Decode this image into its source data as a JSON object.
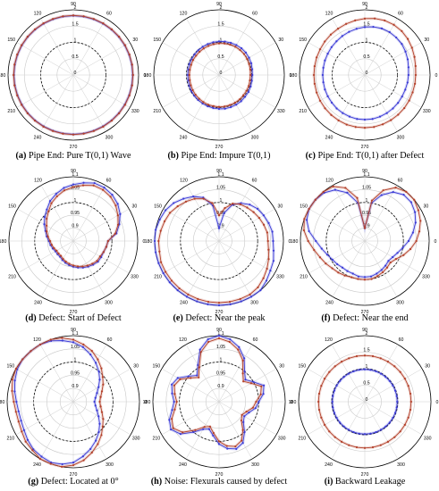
{
  "chart_data": [
    {
      "id": "a",
      "type": "polar",
      "caption_letter": "(a)",
      "caption_text": " Pipe End: Pure T(0,1) Wave",
      "r_ticks": [
        "0",
        "0.5",
        "1",
        "1.5",
        "2"
      ],
      "r_tick_values": [
        0,
        0.5,
        1,
        1.5,
        2
      ],
      "dashed_ring": "1",
      "theta_ticks_deg": [
        0,
        30,
        60,
        90,
        120,
        150,
        180,
        210,
        240,
        270,
        300,
        330
      ],
      "rmin": 0,
      "rmax": 2,
      "series": [
        {
          "color": "#3b3bd6",
          "radii": [
            1.82,
            1.82,
            1.82,
            1.82,
            1.82,
            1.82,
            1.82,
            1.82,
            1.82,
            1.82,
            1.82,
            1.82,
            1.82,
            1.82,
            1.82,
            1.82,
            1.82,
            1.82,
            1.82,
            1.82,
            1.82,
            1.82,
            1.82,
            1.82,
            1.82,
            1.82,
            1.82,
            1.82,
            1.82,
            1.82,
            1.82,
            1.82,
            1.82,
            1.82,
            1.82,
            1.82
          ]
        },
        {
          "color": "#b3402a",
          "radii": [
            1.83,
            1.83,
            1.83,
            1.83,
            1.83,
            1.83,
            1.83,
            1.83,
            1.83,
            1.83,
            1.83,
            1.83,
            1.83,
            1.83,
            1.83,
            1.83,
            1.83,
            1.83,
            1.83,
            1.83,
            1.83,
            1.83,
            1.83,
            1.83,
            1.83,
            1.83,
            1.83,
            1.83,
            1.83,
            1.83,
            1.83,
            1.83,
            1.83,
            1.83,
            1.83,
            1.83
          ]
        }
      ]
    },
    {
      "id": "b",
      "type": "polar",
      "caption_letter": "(b)",
      "caption_text": " Pipe End: Impure T(0,1)",
      "r_ticks": [
        "0",
        "0.5",
        "1",
        "1.5",
        "2"
      ],
      "r_tick_values": [
        0,
        0.5,
        1,
        1.5,
        2
      ],
      "dashed_ring": "1",
      "theta_ticks_deg": [
        0,
        30,
        60,
        90,
        120,
        150,
        180,
        210,
        240,
        270,
        300,
        330
      ],
      "rmin": 0,
      "rmax": 2,
      "series": [
        {
          "color": "#3b3bd6",
          "radii": [
            1.02,
            1.03,
            1.05,
            1.06,
            1.07,
            1.07,
            1.06,
            1.05,
            1.04,
            1.03,
            1.02,
            1.01,
            1.0,
            0.99,
            0.98,
            0.97,
            0.97,
            0.96,
            0.96,
            0.96,
            0.97,
            0.98,
            0.99,
            1.0,
            1.01,
            1.02,
            1.03,
            1.04,
            1.05,
            1.05,
            1.05,
            1.05,
            1.04,
            1.04,
            1.03,
            1.02
          ]
        },
        {
          "color": "#b3402a",
          "radii": [
            0.96,
            0.97,
            0.98,
            0.99,
            1.0,
            1.0,
            1.0,
            0.99,
            0.98,
            0.97,
            0.96,
            0.95,
            0.94,
            0.93,
            0.92,
            0.92,
            0.91,
            0.91,
            0.91,
            0.91,
            0.92,
            0.93,
            0.94,
            0.95,
            0.96,
            0.97,
            0.97,
            0.98,
            0.98,
            0.98,
            0.98,
            0.98,
            0.97,
            0.97,
            0.97,
            0.96
          ]
        }
      ]
    },
    {
      "id": "c",
      "type": "polar",
      "caption_letter": "(c)",
      "caption_text": " Pipe End: T(0,1) after Defect",
      "r_ticks": [
        "0",
        "0.5",
        "1",
        "1.5",
        "2"
      ],
      "r_tick_values": [
        0,
        0.5,
        1,
        1.5,
        2
      ],
      "dashed_ring": "1",
      "theta_ticks_deg": [
        0,
        30,
        60,
        90,
        120,
        150,
        180,
        210,
        240,
        270,
        300,
        330
      ],
      "rmin": 0,
      "rmax": 2,
      "series": [
        {
          "color": "#3b3bd6",
          "radii": [
            1.34,
            1.36,
            1.4,
            1.44,
            1.48,
            1.5,
            1.52,
            1.52,
            1.5,
            1.47,
            1.44,
            1.41,
            1.38,
            1.35,
            1.33,
            1.31,
            1.3,
            1.29,
            1.29,
            1.29,
            1.3,
            1.31,
            1.32,
            1.34,
            1.35,
            1.36,
            1.37,
            1.37,
            1.37,
            1.36,
            1.35,
            1.34,
            1.33,
            1.32,
            1.32,
            1.33
          ]
        },
        {
          "color": "#b3402a",
          "radii": [
            1.56,
            1.58,
            1.62,
            1.67,
            1.72,
            1.76,
            1.78,
            1.78,
            1.76,
            1.73,
            1.7,
            1.67,
            1.64,
            1.62,
            1.6,
            1.58,
            1.57,
            1.56,
            1.56,
            1.56,
            1.57,
            1.58,
            1.59,
            1.6,
            1.61,
            1.62,
            1.62,
            1.62,
            1.62,
            1.61,
            1.6,
            1.59,
            1.58,
            1.57,
            1.56,
            1.56
          ]
        }
      ]
    },
    {
      "id": "d",
      "type": "polar",
      "caption_letter": "(d)",
      "caption_text": " Defect: Start of Defect",
      "r_ticks": [
        "0.9",
        "0.95",
        "1",
        "1.05",
        "1.1"
      ],
      "r_tick_values": [
        0.9,
        0.95,
        1.0,
        1.05,
        1.1
      ],
      "dashed_ring": "1",
      "theta_ticks_deg": [
        0,
        30,
        60,
        90,
        120,
        150,
        180,
        210,
        240,
        270,
        300,
        330
      ],
      "rmin": 0.85,
      "rmax": 1.1,
      "series": [
        {
          "color": "#3b3bd6",
          "radii": [
            0.985,
            1.02,
            1.04,
            1.06,
            1.075,
            1.085,
            1.09,
            1.09,
            1.08,
            1.07,
            1.06,
            1.045,
            1.03,
            1.01,
            0.995,
            0.98,
            0.965,
            0.955,
            0.945,
            0.94,
            0.935,
            0.93,
            0.93,
            0.93,
            0.935,
            0.94,
            0.945,
            0.95,
            0.955,
            0.96,
            0.965,
            0.97,
            0.975,
            0.975,
            0.975,
            0.98
          ]
        },
        {
          "color": "#b3402a",
          "radii": [
            0.985,
            1.015,
            1.035,
            1.05,
            1.065,
            1.075,
            1.08,
            1.08,
            1.07,
            1.06,
            1.05,
            1.035,
            1.02,
            1.0,
            0.985,
            0.97,
            0.96,
            0.95,
            0.94,
            0.935,
            0.93,
            0.925,
            0.925,
            0.925,
            0.93,
            0.935,
            0.94,
            0.945,
            0.95,
            0.955,
            0.96,
            0.965,
            0.97,
            0.97,
            0.975,
            0.98
          ]
        }
      ]
    },
    {
      "id": "e",
      "type": "polar",
      "caption_letter": "(e)",
      "caption_text": " Defect: Near the peak",
      "r_ticks": [
        "0.9",
        "0.95",
        "1",
        "1.05",
        "1.1"
      ],
      "r_tick_values": [
        0.9,
        0.95,
        1.0,
        1.05,
        1.1
      ],
      "dashed_ring": "1",
      "theta_ticks_deg": [
        0,
        30,
        60,
        90,
        120,
        150,
        180,
        210,
        240,
        270,
        300,
        330
      ],
      "rmin": 0.85,
      "rmax": 1.1,
      "series": [
        {
          "color": "#3b3bd6",
          "radii": [
            1.06,
            1.06,
            1.055,
            1.05,
            1.045,
            1.035,
            1.02,
            1.0,
            0.96,
            0.9,
            0.99,
            1.03,
            1.05,
            1.065,
            1.08,
            1.09,
            1.095,
            1.1,
            1.1,
            1.1,
            1.1,
            1.1,
            1.1,
            1.1,
            1.1,
            1.1,
            1.1,
            1.1,
            1.1,
            1.1,
            1.1,
            1.1,
            1.09,
            1.08,
            1.075,
            1.065
          ]
        },
        {
          "color": "#b3402a",
          "radii": [
            1.04,
            1.04,
            1.035,
            1.03,
            1.025,
            1.02,
            1.015,
            1.005,
            0.98,
            0.95,
            1.0,
            1.025,
            1.04,
            1.05,
            1.06,
            1.07,
            1.075,
            1.08,
            1.085,
            1.085,
            1.09,
            1.09,
            1.09,
            1.09,
            1.09,
            1.09,
            1.09,
            1.09,
            1.09,
            1.09,
            1.09,
            1.085,
            1.075,
            1.065,
            1.055,
            1.045
          ]
        }
      ]
    },
    {
      "id": "f",
      "type": "polar",
      "caption_letter": "(f)",
      "caption_text": " Defect: Near the end",
      "r_ticks": [
        "0.9",
        "0.95",
        "1",
        "1.05",
        "1.1"
      ],
      "r_tick_values": [
        0.9,
        0.95,
        1.0,
        1.05,
        1.1
      ],
      "dashed_ring": "1",
      "theta_ticks_deg": [
        0,
        30,
        60,
        90,
        120,
        150,
        180,
        210,
        240,
        270,
        300,
        330
      ],
      "rmin": 0.85,
      "rmax": 1.1,
      "series": [
        {
          "color": "#3b3bd6",
          "radii": [
            1.02,
            1.04,
            1.06,
            1.075,
            1.085,
            1.085,
            1.07,
            1.04,
            1.0,
            0.9,
            1.0,
            1.05,
            1.08,
            1.095,
            1.1,
            1.1,
            1.09,
            1.07,
            1.04,
            1.02,
            1.005,
            0.995,
            0.99,
            0.985,
            0.985,
            0.985,
            0.99,
            0.99,
            0.99,
            0.985,
            0.98,
            0.975,
            0.97,
            0.975,
            0.985,
            1.0
          ]
        },
        {
          "color": "#b3402a",
          "radii": [
            1.05,
            1.065,
            1.08,
            1.09,
            1.1,
            1.1,
            1.09,
            1.06,
            1.01,
            0.9,
            1.02,
            1.07,
            1.095,
            1.1,
            1.1,
            1.1,
            1.1,
            1.09,
            1.07,
            1.05,
            1.035,
            1.025,
            1.015,
            1.01,
            1.005,
            1.0,
            1.0,
            1.0,
            1.0,
            0.995,
            0.99,
            0.985,
            0.98,
            0.99,
            1.01,
            1.03
          ]
        }
      ]
    },
    {
      "id": "g",
      "type": "polar",
      "caption_letter": "(g)",
      "caption_text": " Defect: Located at 0°",
      "r_ticks": [
        "0.9",
        "0.95",
        "1",
        "1.05",
        "1.1"
      ],
      "r_tick_values": [
        0.9,
        0.95,
        1.0,
        1.05,
        1.1
      ],
      "dashed_ring": "1",
      "theta_ticks_deg": [
        0,
        30,
        60,
        90,
        120,
        150,
        180,
        210,
        240,
        270,
        300,
        330
      ],
      "rmin": 0.85,
      "rmax": 1.1,
      "series": [
        {
          "color": "#3b3bd6",
          "radii": [
            0.93,
            0.935,
            0.945,
            0.96,
            0.98,
            1.0,
            1.02,
            1.04,
            1.06,
            1.075,
            1.085,
            1.095,
            1.1,
            1.1,
            1.1,
            1.095,
            1.085,
            1.075,
            1.065,
            1.06,
            1.06,
            1.065,
            1.075,
            1.085,
            1.09,
            1.095,
            1.09,
            1.08,
            1.06,
            1.04,
            1.02,
            1.0,
            0.98,
            0.96,
            0.945,
            0.935
          ]
        },
        {
          "color": "#b3402a",
          "radii": [
            0.95,
            0.955,
            0.965,
            0.98,
            0.995,
            1.015,
            1.035,
            1.055,
            1.07,
            1.085,
            1.095,
            1.1,
            1.1,
            1.1,
            1.1,
            1.1,
            1.095,
            1.085,
            1.075,
            1.07,
            1.07,
            1.075,
            1.085,
            1.09,
            1.1,
            1.1,
            1.1,
            1.09,
            1.075,
            1.055,
            1.035,
            1.015,
            0.995,
            0.98,
            0.965,
            0.955
          ]
        }
      ]
    },
    {
      "id": "h",
      "type": "polar",
      "caption_letter": "(h)",
      "caption_text": " Noise: Flexurals caused by defect",
      "r_ticks": [
        "0.9",
        "0.95",
        "1",
        "1.05",
        "1.1"
      ],
      "r_tick_values": [
        0.9,
        0.95,
        1.0,
        1.05,
        1.1
      ],
      "dashed_ring": "1",
      "theta_ticks_deg": [
        0,
        30,
        60,
        90,
        120,
        150,
        180,
        210,
        240,
        270,
        300,
        330
      ],
      "rmin": 0.85,
      "rmax": 1.1,
      "series": [
        {
          "color": "#3b3bd6",
          "radii": [
            1.0,
            1.02,
            1.03,
            1.0,
            0.98,
            1.0,
            1.04,
            1.07,
            1.09,
            1.1,
            1.09,
            1.06,
            1.01,
            0.98,
            1.0,
            1.03,
            1.04,
            1.03,
            1.02,
            1.03,
            1.05,
            1.06,
            1.04,
            1.0,
            0.97,
            0.96,
            0.98,
            1.01,
            1.03,
            1.04,
            1.03,
            1.0,
            0.97,
            0.96,
            0.97,
            0.99
          ]
        },
        {
          "color": "#b3402a",
          "radii": [
            0.99,
            1.01,
            1.02,
            0.99,
            0.97,
            0.99,
            1.03,
            1.06,
            1.08,
            1.09,
            1.08,
            1.05,
            1.0,
            0.97,
            0.99,
            1.02,
            1.03,
            1.02,
            1.01,
            1.02,
            1.04,
            1.05,
            1.03,
            0.99,
            0.96,
            0.95,
            0.97,
            1.0,
            1.02,
            1.03,
            1.02,
            0.99,
            0.96,
            0.95,
            0.96,
            0.98
          ]
        }
      ]
    },
    {
      "id": "i",
      "type": "polar",
      "caption_letter": "(i)",
      "caption_text": " Backward Leakage",
      "r_ticks": [
        "0",
        "0.5",
        "1",
        "1.5",
        "2"
      ],
      "r_tick_values": [
        0,
        0.5,
        1,
        1.5,
        2
      ],
      "dashed_ring": "1",
      "theta_ticks_deg": [
        0,
        30,
        60,
        90,
        120,
        150,
        180,
        210,
        240,
        270,
        300,
        330
      ],
      "rmin": 0,
      "rmax": 2,
      "series": [
        {
          "color": "#3b3bd6",
          "radii": [
            0.98,
            0.98,
            0.98,
            0.98,
            0.98,
            0.98,
            0.98,
            0.98,
            0.98,
            0.98,
            0.98,
            0.98,
            0.98,
            0.98,
            0.98,
            0.98,
            0.98,
            0.98,
            0.98,
            0.98,
            0.98,
            0.98,
            0.98,
            0.98,
            0.98,
            0.98,
            0.98,
            0.98,
            0.98,
            0.98,
            0.98,
            0.98,
            0.98,
            0.98,
            0.98,
            0.98
          ]
        },
        {
          "color": "#b3402a",
          "radii": [
            1.4,
            1.4,
            1.4,
            1.4,
            1.4,
            1.4,
            1.4,
            1.4,
            1.4,
            1.4,
            1.4,
            1.4,
            1.4,
            1.4,
            1.4,
            1.4,
            1.4,
            1.4,
            1.4,
            1.4,
            1.4,
            1.4,
            1.4,
            1.4,
            1.4,
            1.4,
            1.4,
            1.4,
            1.4,
            1.4,
            1.4,
            1.4,
            1.4,
            1.4,
            1.4,
            1.4
          ]
        }
      ]
    }
  ]
}
